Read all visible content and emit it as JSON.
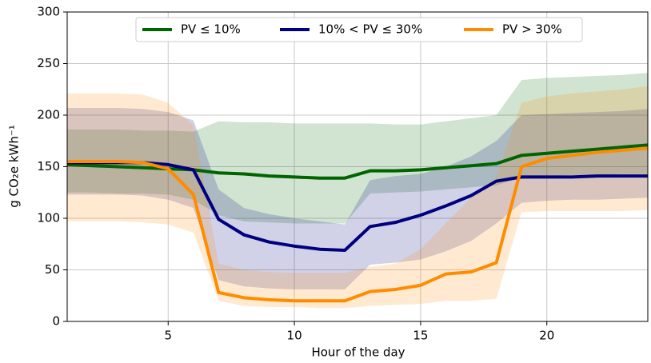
{
  "chart_data": {
    "type": "line",
    "xlabel": "Hour of the day",
    "ylabel": "g CO₂e kWh⁻¹",
    "x": [
      1,
      2,
      3,
      4,
      5,
      6,
      7,
      8,
      9,
      10,
      11,
      12,
      13,
      14,
      15,
      16,
      17,
      18,
      19,
      20,
      21,
      22,
      23,
      24
    ],
    "xlim": [
      1,
      24
    ],
    "xticks": [
      5,
      10,
      15,
      20
    ],
    "ylim": [
      0,
      300
    ],
    "yticks": [
      0,
      50,
      100,
      150,
      200,
      250,
      300
    ],
    "grid": true,
    "legend": "upper center",
    "series": [
      {
        "name": "PV ≤ 10%",
        "color": "#006400",
        "values": [
          152,
          151,
          150,
          149,
          148,
          147,
          144,
          143,
          141,
          140,
          139,
          139,
          146,
          146,
          147,
          149,
          151,
          153,
          161,
          163,
          165,
          167,
          169,
          171
        ],
        "upper": [
          186,
          186,
          186,
          185,
          185,
          184,
          194,
          193,
          193,
          192,
          192,
          192,
          192,
          191,
          191,
          194,
          197,
          200,
          234,
          236,
          237,
          238,
          239,
          241
        ],
        "lower": [
          125,
          125,
          124,
          124,
          123,
          118,
          103,
          97,
          96,
          95,
          95,
          95,
          124,
          125,
          126,
          128,
          130,
          132,
          140,
          141,
          142,
          142,
          143,
          143
        ]
      },
      {
        "name": "10% < PV ≤ 30%",
        "color": "#00007f",
        "values": [
          154,
          154,
          154,
          154,
          152,
          147,
          99,
          84,
          77,
          73,
          70,
          69,
          92,
          96,
          103,
          112,
          122,
          136,
          140,
          140,
          140,
          141,
          141,
          141
        ],
        "upper": [
          207,
          207,
          207,
          206,
          203,
          195,
          128,
          110,
          104,
          100,
          97,
          94,
          137,
          141,
          143,
          150,
          160,
          175,
          200,
          201,
          202,
          203,
          204,
          206
        ],
        "lower": [
          123,
          123,
          123,
          122,
          118,
          110,
          40,
          34,
          32,
          31,
          31,
          31,
          55,
          57,
          60,
          68,
          78,
          95,
          115,
          117,
          118,
          118,
          119,
          120
        ]
      },
      {
        "name": "PV > 30%",
        "color": "#ff8c00",
        "values": [
          155,
          155,
          155,
          154,
          148,
          123,
          28,
          23,
          21,
          20,
          20,
          20,
          29,
          31,
          35,
          46,
          48,
          57,
          150,
          158,
          161,
          164,
          166,
          168
        ],
        "upper": [
          221,
          221,
          221,
          220,
          212,
          190,
          56,
          50,
          48,
          47,
          47,
          47,
          53,
          56,
          70,
          95,
          120,
          140,
          212,
          218,
          221,
          223,
          225,
          228
        ],
        "lower": [
          97,
          97,
          97,
          96,
          94,
          86,
          20,
          15,
          14,
          14,
          13,
          13,
          15,
          16,
          17,
          20,
          20,
          22,
          106,
          107,
          107,
          107,
          107,
          108
        ]
      }
    ]
  }
}
